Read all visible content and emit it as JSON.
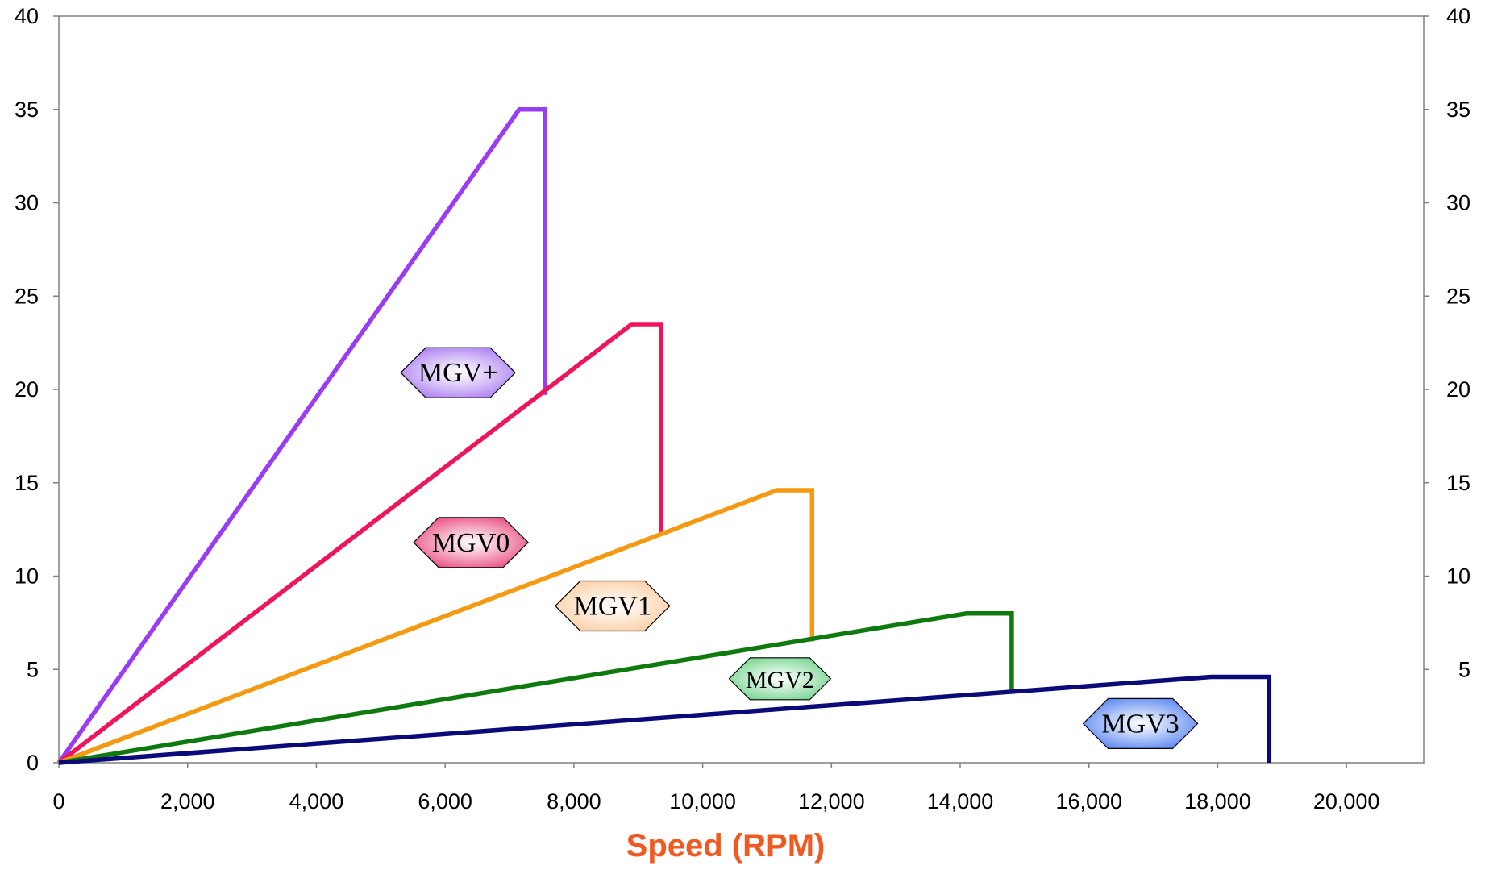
{
  "chart_data": {
    "type": "line",
    "title": "",
    "xlabel": "Speed (RPM)",
    "ylabel": "",
    "xlim": [
      0,
      21200
    ],
    "ylim": [
      0,
      40
    ],
    "y2lim": [
      0,
      40
    ],
    "grid": false,
    "x_ticks": [
      "0",
      "2,000",
      "4,000",
      "6,000",
      "8,000",
      "10,000",
      "12,000",
      "14,000",
      "16,000",
      "18,000",
      "20,000"
    ],
    "x_tick_values": [
      0,
      2000,
      4000,
      6000,
      8000,
      10000,
      12000,
      14000,
      16000,
      18000,
      20000
    ],
    "y_ticks": [
      "0",
      "5",
      "10",
      "15",
      "20",
      "25",
      "30",
      "35",
      "40"
    ],
    "y_tick_values": [
      0,
      5,
      10,
      15,
      20,
      25,
      30,
      35,
      40
    ],
    "y2_ticks": [
      "5",
      "10",
      "15",
      "20",
      "25",
      "30",
      "35",
      "40"
    ],
    "y2_tick_values": [
      5,
      10,
      15,
      20,
      25,
      30,
      35,
      40
    ],
    "xlabel_color": "#f0591f",
    "series": [
      {
        "label": "MGV+",
        "color": "#9b3cf5",
        "badge_color": "#a878f0",
        "badge_pos": [
          6200,
          20.9
        ],
        "points": [
          [
            0,
            0
          ],
          [
            7150,
            35
          ],
          [
            7550,
            35
          ],
          [
            7550,
            19.7
          ]
        ]
      },
      {
        "label": "MGV0",
        "color": "#f0145a",
        "badge_color": "#e8457a",
        "badge_pos": [
          6400,
          11.8
        ],
        "points": [
          [
            0,
            0
          ],
          [
            8900,
            23.5
          ],
          [
            9350,
            23.5
          ],
          [
            9350,
            12.3
          ]
        ]
      },
      {
        "label": "MGV1",
        "color": "#f59a10",
        "badge_color": "#fbcca0",
        "badge_pos": [
          8600,
          8.4
        ],
        "points": [
          [
            0,
            0
          ],
          [
            11150,
            14.6
          ],
          [
            11700,
            14.6
          ],
          [
            11700,
            6.5
          ]
        ]
      },
      {
        "label": "MGV2",
        "color": "#0e7a0e",
        "badge_color": "#6fd28a",
        "badge_pos": [
          11200,
          4.5
        ],
        "points": [
          [
            0,
            0
          ],
          [
            14100,
            8.0
          ],
          [
            14800,
            8.0
          ],
          [
            14800,
            3.9
          ]
        ]
      },
      {
        "label": "MGV3",
        "color": "#0a0a78",
        "badge_color": "#4f7ff0",
        "badge_pos": [
          16800,
          2.1
        ],
        "points": [
          [
            0,
            0
          ],
          [
            17900,
            4.6
          ],
          [
            18800,
            4.6
          ],
          [
            18800,
            0
          ]
        ]
      }
    ]
  }
}
